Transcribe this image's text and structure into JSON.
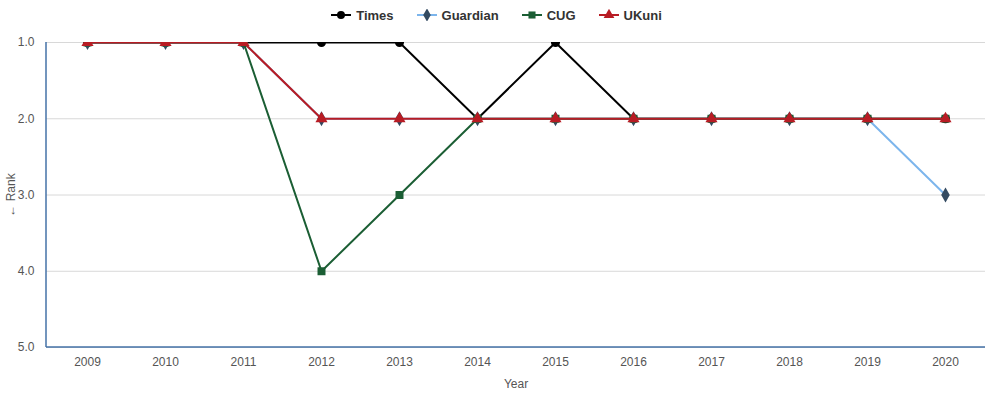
{
  "chart_data": {
    "type": "line",
    "x": [
      2009,
      2010,
      2011,
      2012,
      2013,
      2014,
      2015,
      2016,
      2017,
      2018,
      2019,
      2020
    ],
    "series": [
      {
        "name": "Times",
        "color": "#000000",
        "marker": "circle",
        "values": [
          1,
          1,
          1,
          1,
          1,
          2,
          1,
          2,
          2,
          2,
          2,
          2
        ]
      },
      {
        "name": "Guardian",
        "color": "#7cb5ec",
        "marker": "diamond",
        "values": [
          1,
          1,
          1,
          2,
          2,
          2,
          2,
          2,
          2,
          2,
          2,
          3
        ]
      },
      {
        "name": "CUG",
        "color": "#1b5e34",
        "marker": "square",
        "values": [
          1,
          1,
          1,
          4,
          3,
          2,
          2,
          2,
          2,
          2,
          2,
          2
        ]
      },
      {
        "name": "UKuni",
        "color": "#b81c24",
        "marker": "triangle",
        "values": [
          1,
          1,
          1,
          2,
          2,
          2,
          2,
          2,
          2,
          2,
          2,
          2
        ]
      }
    ],
    "xlabel": "Year",
    "ylabel": "Rank",
    "ylim": [
      1,
      5
    ],
    "yticks": [
      1,
      2,
      3,
      4,
      5
    ],
    "grid": true,
    "legend": "top"
  }
}
